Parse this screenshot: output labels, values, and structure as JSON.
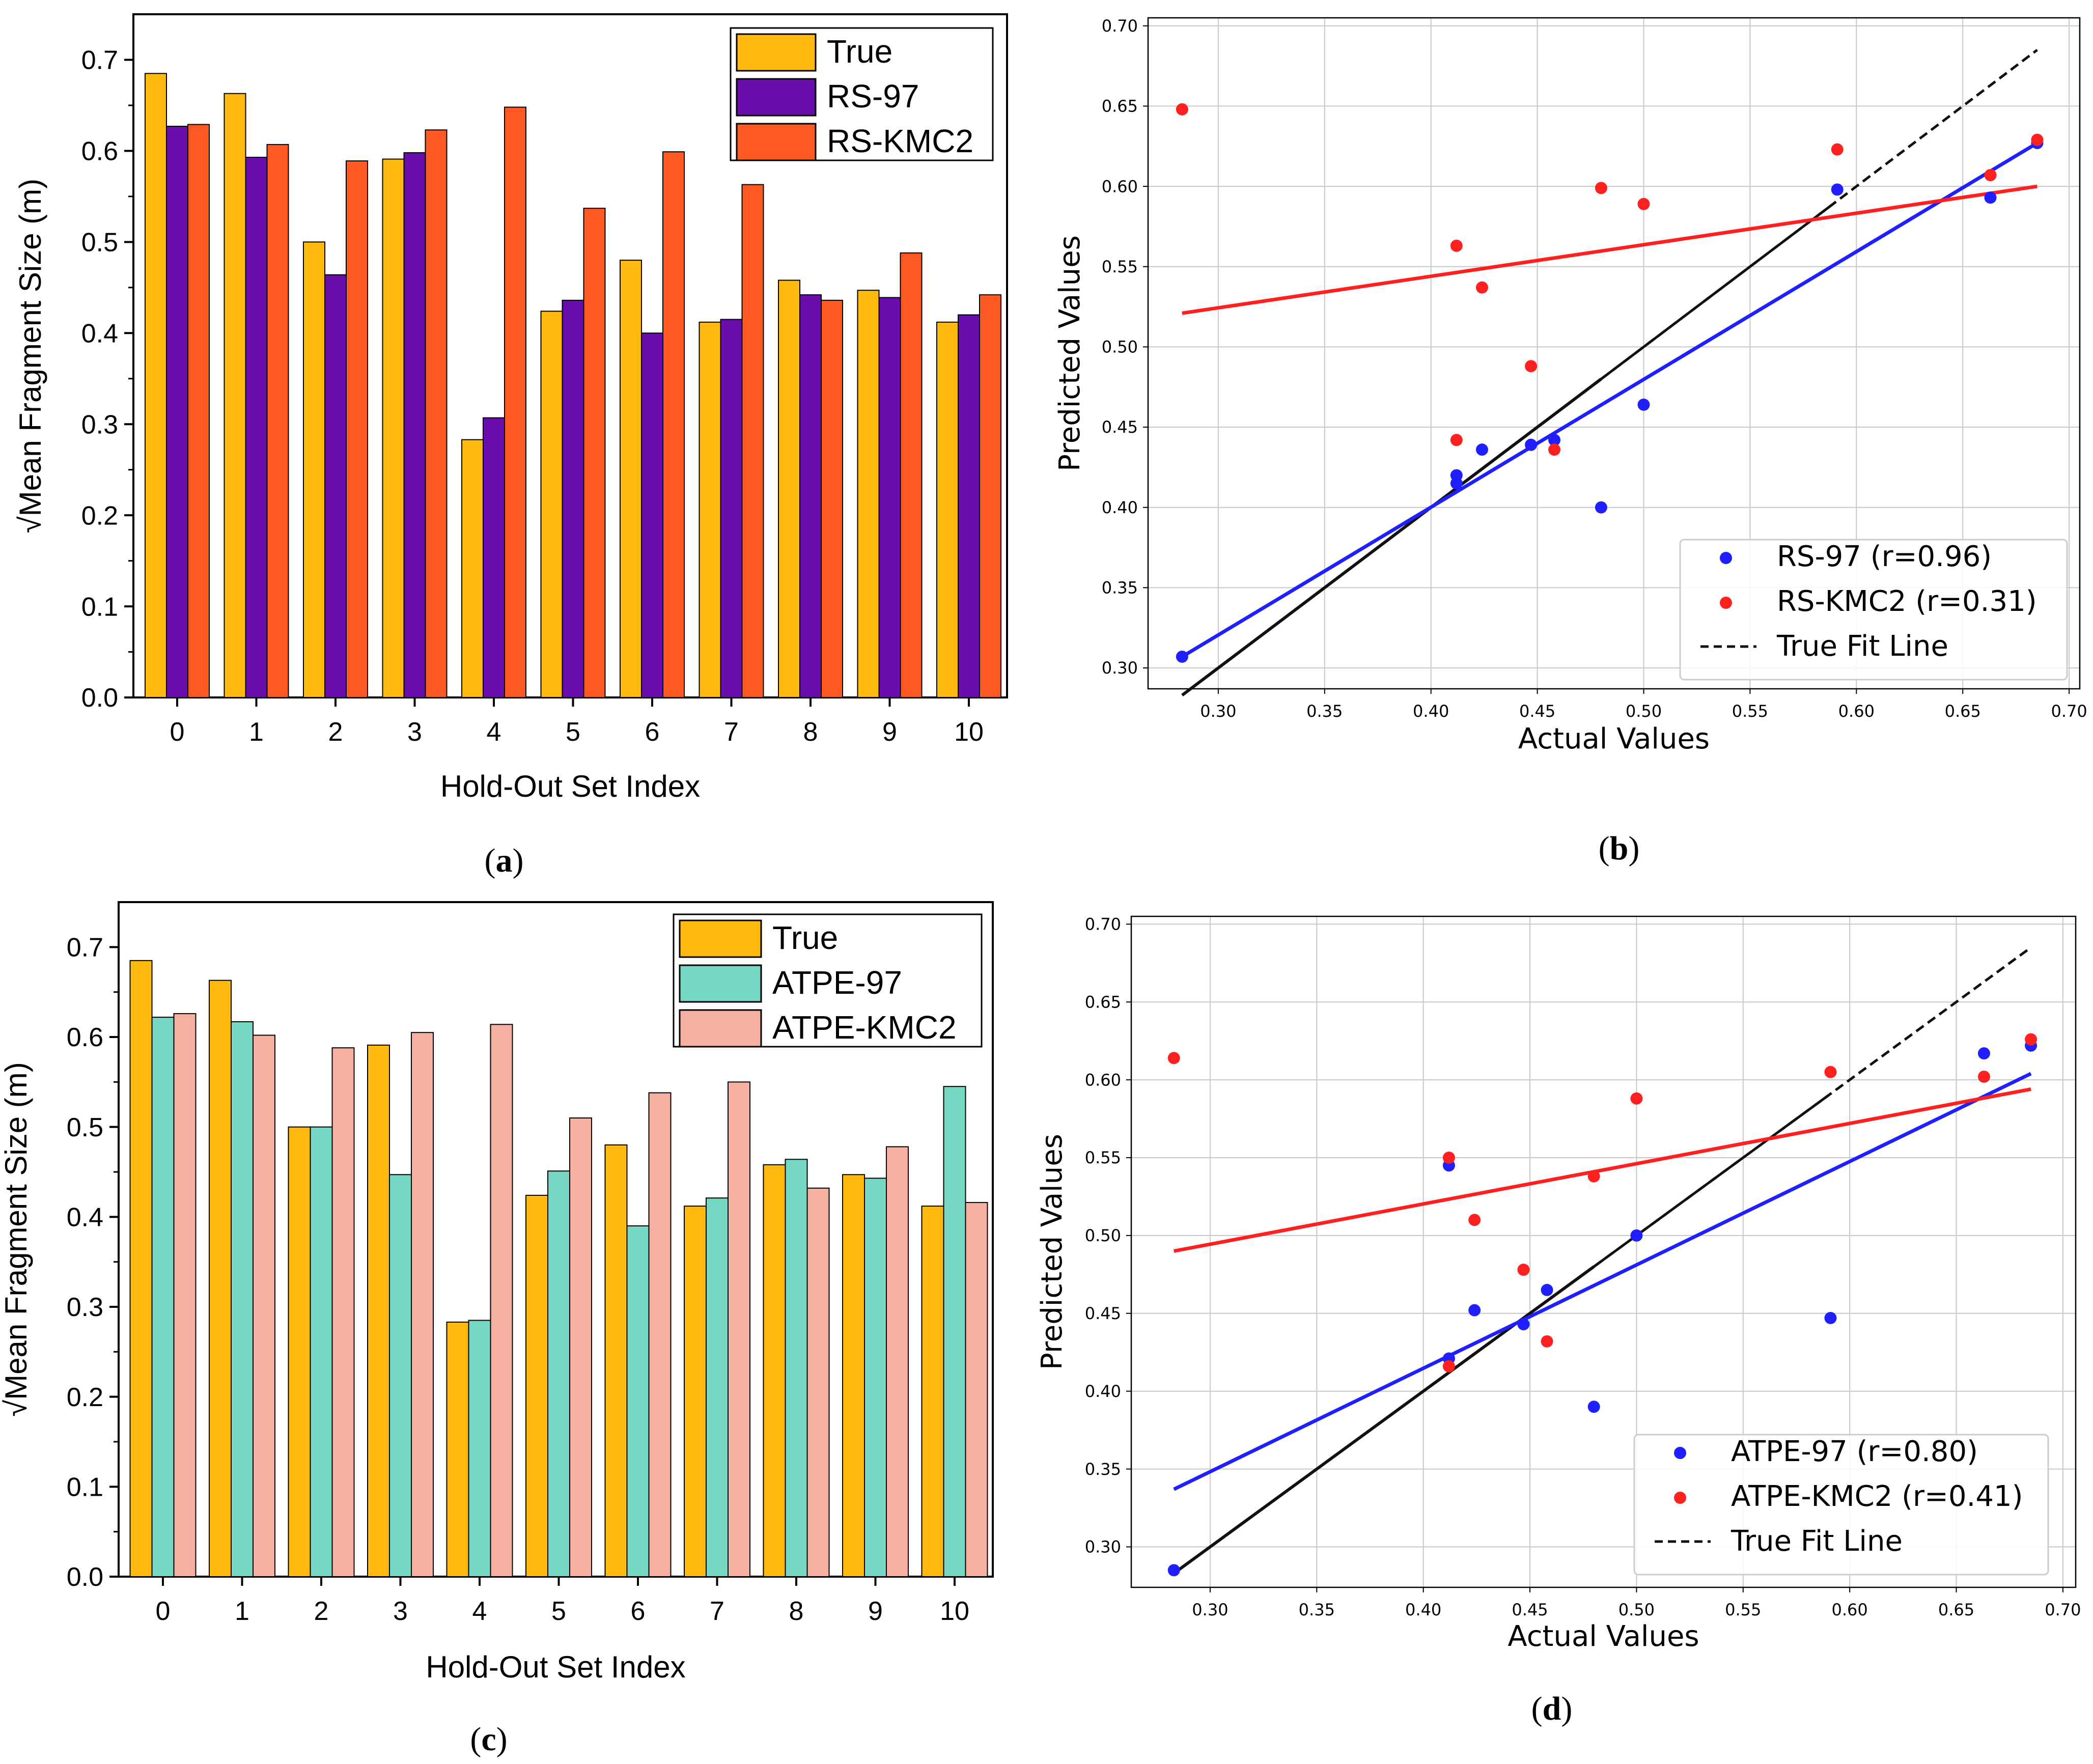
{
  "panels": [
    {
      "id": "a",
      "label_open": "(",
      "label_letter": "a",
      "label_close": ")"
    },
    {
      "id": "b",
      "label_open": "(",
      "label_letter": "b",
      "label_close": ")"
    },
    {
      "id": "c",
      "label_open": "(",
      "label_letter": "c",
      "label_close": ")"
    },
    {
      "id": "d",
      "label_open": "(",
      "label_letter": "d",
      "label_close": ")"
    }
  ],
  "chart_data": [
    {
      "panel": "a",
      "type": "bar",
      "xlabel": "Hold-Out Set Index",
      "ylabel": "√Mean Fragment Size (m)",
      "categories": [
        "0",
        "1",
        "2",
        "3",
        "4",
        "5",
        "6",
        "7",
        "8",
        "9",
        "10"
      ],
      "ylim": [
        0,
        0.75
      ],
      "yticks": [
        0.0,
        0.1,
        0.2,
        0.3,
        0.4,
        0.5,
        0.6,
        0.7
      ],
      "ytick_labels": [
        "0.0",
        "0.1",
        "0.2",
        "0.3",
        "0.4",
        "0.5",
        "0.6",
        "0.7"
      ],
      "grid": false,
      "legend_position": "top-right",
      "series": [
        {
          "name": "True",
          "color": "#FFB90F",
          "values": [
            0.685,
            0.663,
            0.5,
            0.591,
            0.283,
            0.424,
            0.48,
            0.412,
            0.458,
            0.447,
            0.412
          ]
        },
        {
          "name": "RS-97",
          "color": "#6A0DAD",
          "values": [
            0.627,
            0.593,
            0.464,
            0.598,
            0.307,
            0.436,
            0.4,
            0.415,
            0.442,
            0.439,
            0.42
          ]
        },
        {
          "name": "RS-KMC2",
          "color": "#FF5A24",
          "values": [
            0.629,
            0.607,
            0.589,
            0.623,
            0.648,
            0.537,
            0.599,
            0.563,
            0.436,
            0.488,
            0.442
          ]
        }
      ]
    },
    {
      "panel": "b",
      "type": "scatter",
      "xlabel": "Actual Values",
      "ylabel": "Predicted Values",
      "xlim": [
        0.267,
        0.705
      ],
      "ylim": [
        0.287,
        0.705
      ],
      "xticks": [
        0.3,
        0.35,
        0.4,
        0.45,
        0.5,
        0.55,
        0.6,
        0.65,
        0.7
      ],
      "xtick_labels": [
        "0.30",
        "0.35",
        "0.40",
        "0.45",
        "0.50",
        "0.55",
        "0.60",
        "0.65",
        "0.70"
      ],
      "yticks": [
        0.3,
        0.35,
        0.4,
        0.45,
        0.5,
        0.55,
        0.6,
        0.65,
        0.7
      ],
      "ytick_labels": [
        "0.30",
        "0.35",
        "0.40",
        "0.45",
        "0.50",
        "0.55",
        "0.60",
        "0.65",
        "0.70"
      ],
      "grid": true,
      "legend_position": "bottom-right",
      "series": [
        {
          "name": "RS-97 (r=0.96)",
          "color": "#1F1FFF",
          "x": [
            0.283,
            0.412,
            0.412,
            0.424,
            0.447,
            0.458,
            0.48,
            0.5,
            0.591,
            0.663,
            0.685
          ],
          "y": [
            0.307,
            0.415,
            0.42,
            0.436,
            0.439,
            0.442,
            0.4,
            0.464,
            0.598,
            0.593,
            0.627
          ],
          "fit": [
            [
              0.283,
              0.307
            ],
            [
              0.685,
              0.627
            ]
          ]
        },
        {
          "name": "RS-KMC2 (r=0.31)",
          "color": "#FF2020",
          "x": [
            0.283,
            0.412,
            0.412,
            0.424,
            0.447,
            0.458,
            0.48,
            0.5,
            0.591,
            0.663,
            0.685
          ],
          "y": [
            0.648,
            0.563,
            0.442,
            0.537,
            0.488,
            0.436,
            0.599,
            0.589,
            0.623,
            0.607,
            0.629
          ],
          "fit": [
            [
              0.283,
              0.521
            ],
            [
              0.685,
              0.6
            ]
          ]
        }
      ],
      "true_fit": {
        "name": "True Fit Line",
        "from": [
          0.283,
          0.283
        ],
        "to": [
          0.685,
          0.685
        ]
      }
    },
    {
      "panel": "c",
      "type": "bar",
      "xlabel": "Hold-Out Set Index",
      "ylabel": "√Mean Fragment Size (m)",
      "categories": [
        "0",
        "1",
        "2",
        "3",
        "4",
        "5",
        "6",
        "7",
        "8",
        "9",
        "10"
      ],
      "ylim": [
        0,
        0.75
      ],
      "yticks": [
        0.0,
        0.1,
        0.2,
        0.3,
        0.4,
        0.5,
        0.6,
        0.7
      ],
      "ytick_labels": [
        "0.0",
        "0.1",
        "0.2",
        "0.3",
        "0.4",
        "0.5",
        "0.6",
        "0.7"
      ],
      "grid": false,
      "legend_position": "top-right",
      "series": [
        {
          "name": "True",
          "color": "#FFB90F",
          "values": [
            0.685,
            0.663,
            0.5,
            0.591,
            0.283,
            0.424,
            0.48,
            0.412,
            0.458,
            0.447,
            0.412
          ]
        },
        {
          "name": "ATPE-97",
          "color": "#76D7C4",
          "values": [
            0.622,
            0.617,
            0.5,
            0.447,
            0.285,
            0.451,
            0.39,
            0.421,
            0.464,
            0.443,
            0.545
          ]
        },
        {
          "name": "ATPE-KMC2",
          "color": "#F5B0A0",
          "values": [
            0.626,
            0.602,
            0.588,
            0.605,
            0.614,
            0.51,
            0.538,
            0.55,
            0.432,
            0.478,
            0.416
          ]
        }
      ]
    },
    {
      "panel": "d",
      "type": "scatter",
      "xlabel": "Actual Values",
      "ylabel": "Predicted Values",
      "xlim": [
        0.263,
        0.706
      ],
      "ylim": [
        0.274,
        0.705
      ],
      "xticks": [
        0.3,
        0.35,
        0.4,
        0.45,
        0.5,
        0.55,
        0.6,
        0.65,
        0.7
      ],
      "xtick_labels": [
        "0.30",
        "0.35",
        "0.40",
        "0.45",
        "0.50",
        "0.55",
        "0.60",
        "0.65",
        "0.70"
      ],
      "yticks": [
        0.3,
        0.35,
        0.4,
        0.45,
        0.5,
        0.55,
        0.6,
        0.65,
        0.7
      ],
      "ytick_labels": [
        "0.30",
        "0.35",
        "0.40",
        "0.45",
        "0.50",
        "0.55",
        "0.60",
        "0.65",
        "0.70"
      ],
      "grid": true,
      "legend_position": "bottom-right",
      "series": [
        {
          "name": "ATPE-97 (r=0.80)",
          "color": "#1F1FFF",
          "x": [
            0.283,
            0.412,
            0.412,
            0.424,
            0.447,
            0.458,
            0.48,
            0.5,
            0.591,
            0.663,
            0.685
          ],
          "y": [
            0.285,
            0.421,
            0.545,
            0.452,
            0.443,
            0.465,
            0.39,
            0.5,
            0.447,
            0.617,
            0.622
          ],
          "fit": [
            [
              0.283,
              0.337
            ],
            [
              0.685,
              0.604
            ]
          ]
        },
        {
          "name": "ATPE-KMC2 (r=0.41)",
          "color": "#FF2020",
          "x": [
            0.283,
            0.412,
            0.412,
            0.424,
            0.447,
            0.458,
            0.48,
            0.5,
            0.591,
            0.663,
            0.685
          ],
          "y": [
            0.614,
            0.416,
            0.55,
            0.51,
            0.478,
            0.432,
            0.538,
            0.588,
            0.605,
            0.602,
            0.626
          ],
          "fit": [
            [
              0.283,
              0.49
            ],
            [
              0.685,
              0.594
            ]
          ]
        }
      ],
      "true_fit": {
        "name": "True Fit Line",
        "from": [
          0.283,
          0.283
        ],
        "to": [
          0.685,
          0.685
        ]
      }
    }
  ]
}
